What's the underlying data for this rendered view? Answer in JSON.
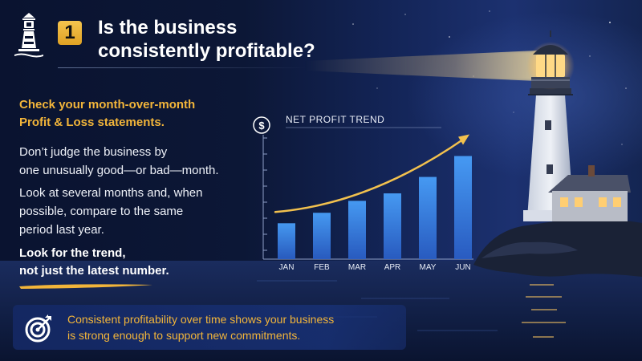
{
  "header": {
    "step_number": "1",
    "title_line1": "Is the business",
    "title_line2": "consistently profitable?"
  },
  "content": {
    "subheading_line1": "Check your month-over-month",
    "subheading_line2": "Profit & Loss statements.",
    "para1_line1": "Don’t judge the business by",
    "para1_line2": "one unusually good—or bad—month.",
    "para2_line1": "Look at several months and, when",
    "para2_line2": "possible, compare to the same",
    "para2_line3": "period last year.",
    "emphasis_line1": "Look for the trend,",
    "emphasis_line2": "not just the latest number."
  },
  "banner": {
    "line1": "Consistent profitability over time shows your business",
    "line2": "is strong enough to support new commitments."
  },
  "colors": {
    "accent_gold": "#f2b53a",
    "bar_blue": "#3f8ff0",
    "background_navy": "#0b1430"
  },
  "icons": {
    "logo": "lighthouse-icon",
    "chart_badge": "dollar-icon",
    "banner": "target-arrow-icon"
  },
  "chart_data": {
    "type": "bar",
    "title": "NET PROFIT TREND",
    "categories": [
      "JAN",
      "FEB",
      "MAR",
      "APR",
      "MAY",
      "JUN"
    ],
    "values": [
      2.4,
      3.1,
      3.9,
      4.4,
      5.5,
      6.9
    ],
    "ylim": [
      0,
      8
    ],
    "trend_arrow": true,
    "grid": false,
    "y_tick_labels": false
  }
}
